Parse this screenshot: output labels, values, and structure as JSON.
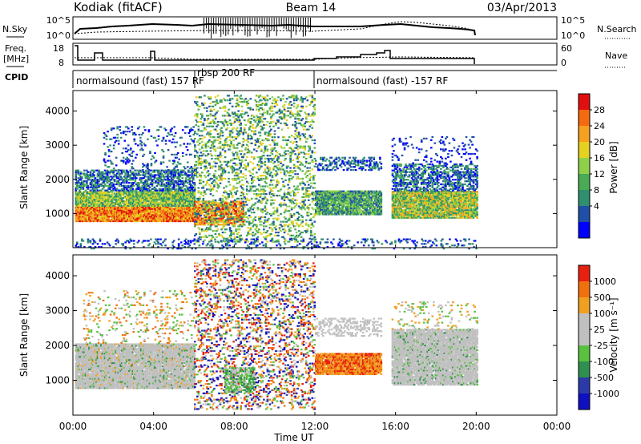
{
  "header": {
    "station": "Kodiak (fitACF)",
    "beam": "Beam 14",
    "date": "03/Apr/2013"
  },
  "panels": {
    "nsky": {
      "label": "N.Sky",
      "yticks": [
        "10^5",
        "10^0"
      ],
      "right_ticks": [
        "10^5",
        "10^0"
      ],
      "right_label": "N.Search"
    },
    "freq": {
      "label_line1": "Freq.",
      "label_line2": "[MHz]",
      "yticks": [
        "18",
        "8"
      ],
      "right_ticks": [
        "60",
        "0"
      ],
      "right_label": "Nave"
    },
    "cpid": {
      "label": "CPID",
      "segments": [
        {
          "text": "normalsound (fast) 157 RF"
        },
        {
          "text": "rbsp 200 RF"
        },
        {
          "text": "normalsound (fast) -157 RF"
        }
      ]
    }
  },
  "chart_data": [
    {
      "type": "heatmap",
      "name": "power",
      "ylabel": "Slant Range [km]",
      "colorbar_label": "Power [dB]",
      "ylim": [
        0,
        4600
      ],
      "yticks": [
        1000,
        2000,
        3000,
        4000
      ],
      "colorbar_ticks": [
        "28",
        "24",
        "20",
        "16",
        "12",
        "8",
        "4"
      ],
      "colors": [
        "#0000ff",
        "#1f4fa8",
        "#2f8f6f",
        "#4aaa55",
        "#8fd04a",
        "#e6d020",
        "#f5a020",
        "#f46a10",
        "#e01010"
      ]
    },
    {
      "type": "heatmap",
      "name": "velocity",
      "ylabel": "Slant Range [km]",
      "colorbar_label": "Velocity [m s⁻¹]",
      "ylim": [
        0,
        4600
      ],
      "yticks": [
        1000,
        2000,
        3000,
        4000
      ],
      "colorbar_ticks": [
        "1000",
        "500",
        "100",
        "25",
        "-25",
        "-100",
        "-500",
        "-1000"
      ],
      "colors": [
        "#1010c0",
        "#2a3aa8",
        "#2f8f4f",
        "#5ac040",
        "#c0c0c0",
        "#c0c0c0",
        "#f0a020",
        "#f07010",
        "#e82010"
      ]
    }
  ],
  "xaxis": {
    "label": "Time UT",
    "ticks": [
      "00:00",
      "04:00",
      "08:00",
      "12:00",
      "16:00",
      "20:00",
      "00:00"
    ]
  }
}
